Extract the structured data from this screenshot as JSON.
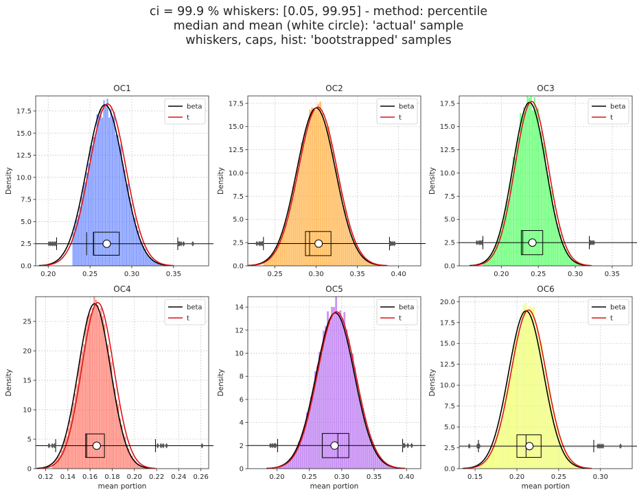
{
  "figure": {
    "suptitle": [
      "ci = 99.9 %  whiskers: [0.05, 99.95]   -   method: percentile",
      "median and mean (white circle): 'actual' sample",
      "whiskers, caps, hist: 'bootstrapped' samples"
    ]
  },
  "chart_data": [
    {
      "type": "histogram",
      "title": "OC1",
      "xlabel": "",
      "ylabel": "Density",
      "color": "#5b7cff",
      "xlim": [
        0.185,
        0.392
      ],
      "ylim": [
        0,
        19.2
      ],
      "xticks": [
        0.2,
        0.25,
        0.3,
        0.35
      ],
      "xtick_labels": [
        "0.20",
        "0.25",
        "0.30",
        "0.35"
      ],
      "yticks": [
        0,
        2.5,
        5,
        7.5,
        10,
        12.5,
        15,
        17.5
      ],
      "ytick_labels": [
        "0.0",
        "2.5",
        "5.0",
        "7.5",
        "10.0",
        "12.5",
        "15.0",
        "17.5"
      ],
      "grid": true,
      "legend": {
        "position": "top-right",
        "entries": [
          {
            "label": "beta",
            "color": "#000000"
          },
          {
            "label": "t",
            "color": "#dd1111"
          }
        ]
      },
      "hist": {
        "mu": 0.269,
        "sigma": 0.022,
        "peak": 18.2,
        "range": [
          0.229,
          0.356
        ]
      },
      "beta": {
        "mu": 0.268,
        "sigma": 0.022,
        "peak": 18.2
      },
      "t": {
        "mu": 0.271,
        "sigma": 0.022,
        "peak": 18.3
      },
      "box": {
        "y": 2.5,
        "half_height": 1.3,
        "q1": 0.254,
        "median": 0.2545,
        "q3": 0.285,
        "mean": 0.27,
        "median_line_extra": 0.246,
        "whisker_low": 0.21,
        "whisker_high": 0.355,
        "fliers": [
          0.201,
          0.203,
          0.205,
          0.207,
          0.209,
          0.356,
          0.357,
          0.359,
          0.362,
          0.373
        ]
      }
    },
    {
      "type": "histogram",
      "title": "OC2",
      "xlabel": "",
      "ylabel": "Density",
      "color": "#ffaa33",
      "xlim": [
        0.217,
        0.427
      ],
      "ylim": [
        0,
        18.3
      ],
      "xticks": [
        0.25,
        0.3,
        0.35,
        0.4
      ],
      "xtick_labels": [
        "0.25",
        "0.30",
        "0.35",
        "0.40"
      ],
      "yticks": [
        0,
        2.5,
        5,
        7.5,
        10,
        12.5,
        15,
        17.5
      ],
      "ytick_labels": [
        "0.0",
        "2.5",
        "5.0",
        "7.5",
        "10.0",
        "12.5",
        "15.0",
        "17.5"
      ],
      "grid": true,
      "legend": {
        "position": "top-right",
        "entries": [
          {
            "label": "beta",
            "color": "#000000"
          },
          {
            "label": "t",
            "color": "#dd1111"
          }
        ]
      },
      "hist": {
        "mu": 0.301,
        "sigma": 0.0235,
        "peak": 17.3,
        "range": [
          0.236,
          0.392
        ]
      },
      "beta": {
        "mu": 0.3,
        "sigma": 0.0235,
        "peak": 17.0
      },
      "t": {
        "mu": 0.302,
        "sigma": 0.0235,
        "peak": 17.1
      },
      "box": {
        "y": 2.4,
        "half_height": 1.3,
        "q1": 0.287,
        "median": 0.292,
        "q3": 0.318,
        "mean": 0.303,
        "whisker_low": 0.236,
        "whisker_high": 0.389,
        "fliers": [
          0.228,
          0.231,
          0.233,
          0.235,
          0.39,
          0.391,
          0.393,
          0.395
        ]
      }
    },
    {
      "type": "histogram",
      "title": "OC3",
      "xlabel": "",
      "ylabel": "Density",
      "color": "#44ff55",
      "xlim": [
        0.143,
        0.377
      ],
      "ylim": [
        0,
        18.3
      ],
      "xticks": [
        0.2,
        0.25,
        0.3,
        0.35
      ],
      "xtick_labels": [
        "0.20",
        "0.25",
        "0.30",
        "0.35"
      ],
      "yticks": [
        0,
        2.5,
        5,
        7.5,
        10,
        12.5,
        15,
        17.5
      ],
      "ytick_labels": [
        "0.0",
        "2.5",
        "5.0",
        "7.5",
        "10.0",
        "12.5",
        "15.0",
        "17.5"
      ],
      "grid": true,
      "legend": {
        "position": "top-right",
        "entries": [
          {
            "label": "beta",
            "color": "#000000"
          },
          {
            "label": "t",
            "color": "#dd1111"
          }
        ]
      },
      "hist": {
        "mu": 0.239,
        "sigma": 0.0225,
        "peak": 18.2,
        "range": [
          0.175,
          0.322
        ]
      },
      "beta": {
        "mu": 0.238,
        "sigma": 0.0225,
        "peak": 17.6
      },
      "t": {
        "mu": 0.241,
        "sigma": 0.0225,
        "peak": 17.7
      },
      "box": {
        "y": 2.5,
        "half_height": 1.3,
        "q1": 0.227,
        "median": 0.229,
        "q3": 0.256,
        "mean": 0.242,
        "whisker_low": 0.175,
        "whisker_high": 0.319,
        "fliers": [
          0.167,
          0.17,
          0.172,
          0.174,
          0.32,
          0.321,
          0.323,
          0.325
        ]
      }
    },
    {
      "type": "histogram",
      "title": "OC4",
      "xlabel": "mean portion",
      "ylabel": "Density",
      "color": "#ff6a5a",
      "xlim": [
        0.111,
        0.267
      ],
      "ylim": [
        0,
        29.2
      ],
      "xticks": [
        0.12,
        0.14,
        0.16,
        0.18,
        0.2,
        0.22,
        0.24,
        0.26
      ],
      "xtick_labels": [
        "0.12",
        "0.14",
        "0.16",
        "0.18",
        "0.20",
        "0.22",
        "0.24",
        "0.26"
      ],
      "yticks": [
        0,
        5,
        10,
        15,
        20,
        25
      ],
      "ytick_labels": [
        "0",
        "5",
        "10",
        "15",
        "20",
        "25"
      ],
      "grid": true,
      "legend": {
        "position": "top-right",
        "entries": [
          {
            "label": "beta",
            "color": "#000000"
          },
          {
            "label": "t",
            "color": "#dd1111"
          }
        ]
      },
      "hist": {
        "mu": 0.165,
        "sigma": 0.0145,
        "peak": 28.3,
        "range": [
          0.126,
          0.222
        ]
      },
      "beta": {
        "mu": 0.164,
        "sigma": 0.0145,
        "peak": 28.0
      },
      "t": {
        "mu": 0.167,
        "sigma": 0.0145,
        "peak": 28.2
      },
      "box": {
        "y": 3.9,
        "half_height": 2.0,
        "q1": 0.156,
        "median": 0.157,
        "q3": 0.173,
        "mean": 0.166,
        "whisker_low": 0.129,
        "whisker_high": 0.219,
        "fliers": [
          0.123,
          0.126,
          0.128,
          0.221,
          0.224,
          0.226,
          0.229,
          0.261
        ]
      }
    },
    {
      "type": "histogram",
      "title": "OC5",
      "xlabel": "mean portion",
      "ylabel": "Density",
      "color": "#b266ee",
      "xlim": [
        0.155,
        0.422
      ],
      "ylim": [
        0,
        14.9
      ],
      "xticks": [
        0.2,
        0.25,
        0.3,
        0.35,
        0.4
      ],
      "xtick_labels": [
        "0.20",
        "0.25",
        "0.30",
        "0.35",
        "0.40"
      ],
      "yticks": [
        0,
        2,
        4,
        6,
        8,
        10,
        12,
        14
      ],
      "ytick_labels": [
        "0",
        "2",
        "4",
        "6",
        "8",
        "10",
        "12",
        "14"
      ],
      "grid": true,
      "legend": {
        "position": "top-right",
        "entries": [
          {
            "label": "beta",
            "color": "#000000"
          },
          {
            "label": "t",
            "color": "#dd1111"
          }
        ]
      },
      "hist": {
        "mu": 0.291,
        "sigma": 0.0295,
        "peak": 14.2,
        "range": [
          0.2,
          0.399
        ]
      },
      "beta": {
        "mu": 0.29,
        "sigma": 0.0295,
        "peak": 13.5
      },
      "t": {
        "mu": 0.292,
        "sigma": 0.0295,
        "peak": 13.6
      },
      "box": {
        "y": 2.0,
        "half_height": 1.05,
        "q1": 0.27,
        "median": 0.294,
        "q3": 0.311,
        "mean": 0.289,
        "whisker_low": 0.201,
        "whisker_high": 0.394,
        "fliers": [
          0.19,
          0.193,
          0.196,
          0.198,
          0.395,
          0.397,
          0.402,
          0.408
        ]
      }
    },
    {
      "type": "histogram",
      "title": "OC6",
      "xlabel": "mean portion",
      "ylabel": "Density",
      "color": "#eeff55",
      "xlim": [
        0.131,
        0.338
      ],
      "ylim": [
        0,
        20.6
      ],
      "xticks": [
        0.15,
        0.2,
        0.25,
        0.3
      ],
      "xtick_labels": [
        "0.15",
        "0.20",
        "0.25",
        "0.30"
      ],
      "yticks": [
        0,
        2.5,
        5,
        7.5,
        10,
        12.5,
        15,
        17.5,
        20
      ],
      "ytick_labels": [
        "0.0",
        "2.5",
        "5.0",
        "7.5",
        "10.0",
        "12.5",
        "15.0",
        "17.5",
        "20.0"
      ],
      "grid": true,
      "legend": {
        "position": "top-right",
        "entries": [
          {
            "label": "beta",
            "color": "#000000"
          },
          {
            "label": "t",
            "color": "#dd1111"
          }
        ]
      },
      "hist": {
        "mu": 0.213,
        "sigma": 0.021,
        "peak": 19.6,
        "range": [
          0.155,
          0.302
        ]
      },
      "beta": {
        "mu": 0.211,
        "sigma": 0.021,
        "peak": 18.9
      },
      "t": {
        "mu": 0.214,
        "sigma": 0.021,
        "peak": 19.0
      },
      "box": {
        "y": 2.7,
        "half_height": 1.35,
        "q1": 0.2,
        "median": 0.211,
        "q3": 0.229,
        "mean": 0.215,
        "whisker_low": 0.154,
        "whisker_high": 0.292,
        "fliers": [
          0.143,
          0.153,
          0.155,
          0.297,
          0.299,
          0.301,
          0.303,
          0.324
        ]
      }
    }
  ]
}
